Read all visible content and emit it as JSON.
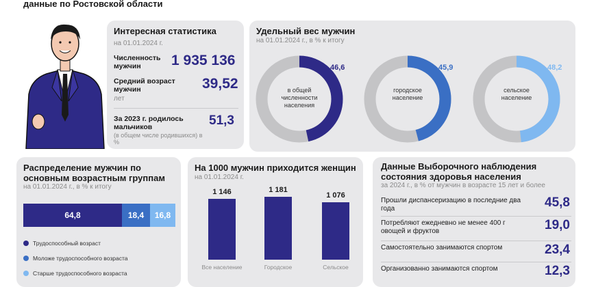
{
  "header": {
    "subtitle": "данные по Ростовской области"
  },
  "stats": {
    "title": "Интересная статистика",
    "date": "на 01.01.2024 г.",
    "population_label": "Численность мужчин",
    "population_value": "1 935 136",
    "avg_age_label": "Средний возраст мужчин",
    "avg_age_unit": "лет",
    "avg_age_value": "39,52",
    "born_label": "За 2023 г. родилось мальчиков",
    "born_note": "(в общем числе родившихся) в %",
    "born_value": "51,3"
  },
  "share": {
    "title": "Удельный вес мужчин",
    "sub": "на 01.01.2024 г., в % к итогу",
    "donuts": [
      {
        "label": "в общей численности населения",
        "value": "46,6",
        "fraction": 0.466,
        "color": "#2e2a87"
      },
      {
        "label": "городское население",
        "value": "45,9",
        "fraction": 0.459,
        "color": "#3a6fc4"
      },
      {
        "label": "сельское население",
        "value": "48,2",
        "fraction": 0.482,
        "color": "#7fb8f0"
      }
    ],
    "track_color": "#c4c4c6"
  },
  "age": {
    "title": "Распределение мужчин по основным возрастным группам",
    "sub": "на 01.01.2024 г., в % к итогу",
    "segments": [
      {
        "value": "64,8",
        "fraction": 0.648,
        "color": "#2e2a87"
      },
      {
        "value": "18,4",
        "fraction": 0.184,
        "color": "#3a6fc4"
      },
      {
        "value": "16,8",
        "fraction": 0.168,
        "color": "#7fb8f0"
      }
    ],
    "legend": [
      {
        "text": "Трудоспособный возраст",
        "color": "#2e2a87"
      },
      {
        "text": "Моложе трудоспособного возраста",
        "color": "#3a6fc4"
      },
      {
        "text": "Старше трудоспособного возраста",
        "color": "#7fb8f0"
      }
    ]
  },
  "women": {
    "title": "На 1000 мужчин приходится женщин",
    "sub": "на 01.01.2024 г.",
    "chart_data": {
      "type": "bar",
      "categories": [
        "Все население",
        "Городское",
        "Сельское"
      ],
      "values": [
        1146,
        1181,
        1076
      ],
      "labels": [
        "1 146",
        "1 181",
        "1 076"
      ]
    }
  },
  "health": {
    "title": "Данные Выборочного наблюдения состояния здоровья населения",
    "sub": "за 2024 г., в % от мужчин в возрасте 15 лет и более",
    "rows": [
      {
        "text": "Прошли диспансеризацию в последние два года",
        "value": "45,8"
      },
      {
        "text": "Потребляют ежедневно не менее 400 г овощей и фруктов",
        "value": "19,0"
      },
      {
        "text": "Самостоятельно занимаются спортом",
        "value": "23,4"
      },
      {
        "text": "Организованно занимаются спортом",
        "value": "12,3"
      }
    ]
  }
}
